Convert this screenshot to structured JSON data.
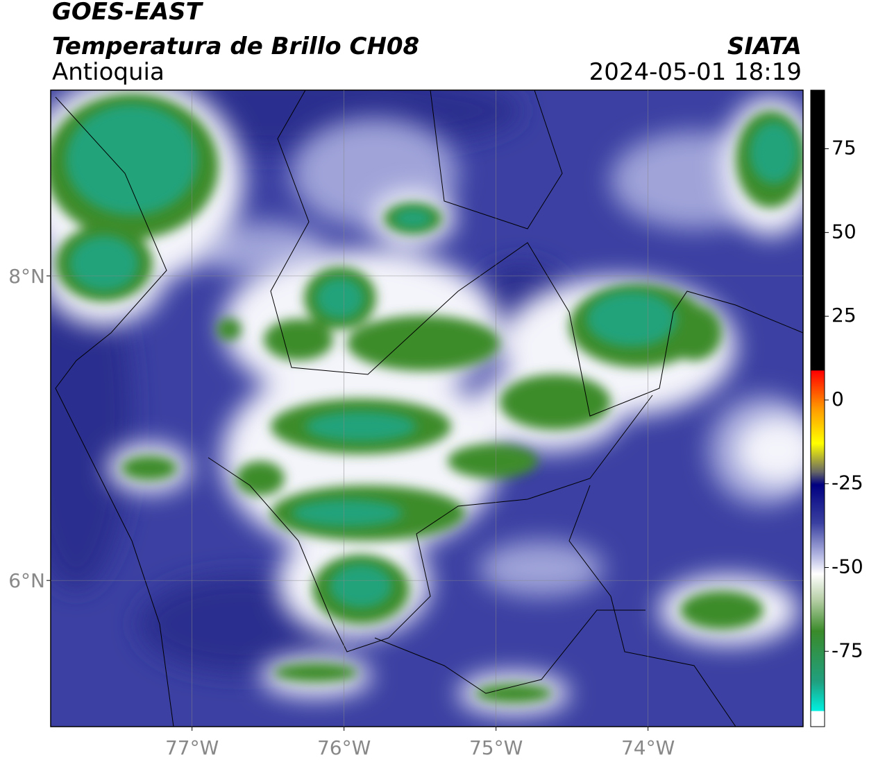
{
  "chart_data": {
    "type": "map",
    "title": "GOES-EAST",
    "subtitle": "Temperatura de Brillo CH08",
    "region": "Antioquia",
    "source": "SIATA",
    "timestamp": "2024-05-01 18:19",
    "xlim": [
      -77.93,
      -72.98
    ],
    "ylim": [
      5.04,
      9.22
    ],
    "xticks": [
      {
        "value": -77,
        "label": "77°W"
      },
      {
        "value": -76,
        "label": "76°W"
      },
      {
        "value": -75,
        "label": "75°W"
      },
      {
        "value": -74,
        "label": "74°W"
      }
    ],
    "yticks": [
      {
        "value": 8,
        "label": "8°N"
      },
      {
        "value": 6,
        "label": "6°N"
      }
    ],
    "grid": true,
    "colorbar": {
      "lim": [
        -97.5,
        92.5
      ],
      "ticks": [
        75,
        50,
        25,
        0,
        -25,
        -50,
        -75
      ]
    }
  }
}
